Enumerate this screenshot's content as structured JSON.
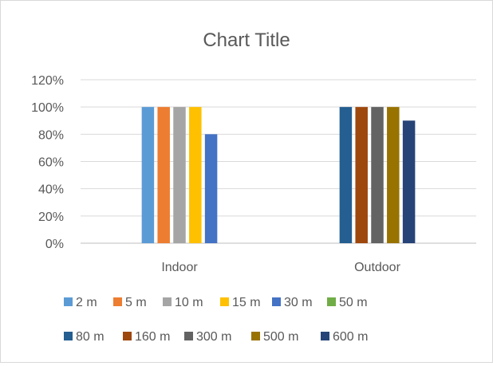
{
  "chart_data": {
    "type": "bar",
    "title": "Chart Title",
    "xlabel": "",
    "ylabel": "",
    "ylim": [
      0,
      1.2
    ],
    "yticks": [
      0,
      0.2,
      0.4,
      0.6,
      0.8,
      1.0,
      1.2
    ],
    "ytick_labels": [
      "0%",
      "20%",
      "40%",
      "60%",
      "80%",
      "100%",
      "120%"
    ],
    "categories": [
      "Indoor",
      "Outdoor"
    ],
    "grid": true,
    "legend_position": "bottom",
    "series": [
      {
        "name": "2 m",
        "color": "#5B9BD5",
        "values": [
          1.0,
          0
        ]
      },
      {
        "name": "5 m",
        "color": "#ED7D31",
        "values": [
          1.0,
          0
        ]
      },
      {
        "name": "10 m",
        "color": "#A5A5A5",
        "values": [
          1.0,
          0
        ]
      },
      {
        "name": "15 m",
        "color": "#FFC000",
        "values": [
          1.0,
          0
        ]
      },
      {
        "name": "30 m",
        "color": "#4472C4",
        "values": [
          0.8,
          0
        ]
      },
      {
        "name": "50 m",
        "color": "#70AD47",
        "values": [
          0,
          0
        ]
      },
      {
        "name": "80 m",
        "color": "#255E91",
        "values": [
          0,
          1.0
        ]
      },
      {
        "name": "160 m",
        "color": "#9E480E",
        "values": [
          0,
          1.0
        ]
      },
      {
        "name": "300 m",
        "color": "#636363",
        "values": [
          0,
          1.0
        ]
      },
      {
        "name": "500 m",
        "color": "#997300",
        "values": [
          0,
          1.0
        ]
      },
      {
        "name": "600 m",
        "color": "#264478",
        "values": [
          0,
          0.9
        ]
      }
    ]
  }
}
